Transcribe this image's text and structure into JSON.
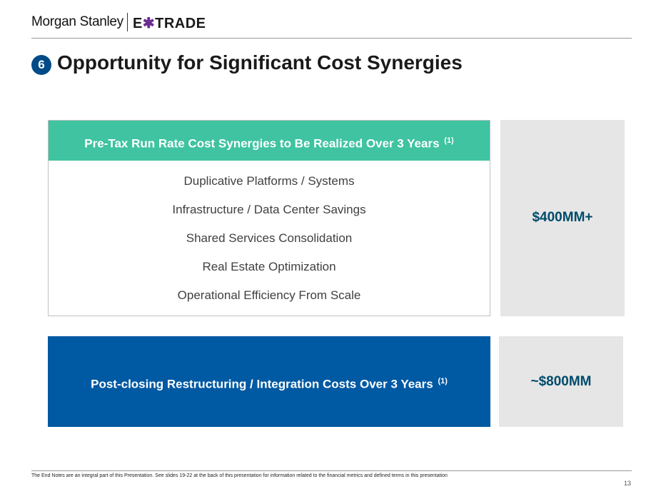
{
  "header": {
    "ms_logo": "Morgan Stanley",
    "etrade_logo_prefix": "E",
    "etrade_logo_star": "✱",
    "etrade_logo_suffix": "TRADE"
  },
  "title": {
    "number": "6",
    "text": "Opportunity for Significant Cost Synergies"
  },
  "synergies": {
    "heading": "Pre-Tax Run Rate Cost Synergies to Be Realized Over 3 Years",
    "heading_note": "(1)",
    "items": [
      "Duplicative Platforms / Systems",
      "Infrastructure / Data Center Savings",
      "Shared Services Consolidation",
      "Real Estate Optimization",
      "Operational Efficiency From Scale"
    ],
    "value": "$400MM+"
  },
  "costs": {
    "label": "Post-closing Restructuring / Integration Costs Over 3 Years",
    "label_note": "(1)",
    "value": "~$800MM"
  },
  "footer": {
    "note": "The End Notes are an integral part of this Presentation. See slides 19-22 at the back of this presentation for information related to the financial metrics and defined terms in this presentation",
    "page": "13"
  },
  "colors": {
    "teal": "#3fc3a1",
    "blue": "#0059a3",
    "badge": "#004b87",
    "grey_panel": "#e6e6e6"
  }
}
